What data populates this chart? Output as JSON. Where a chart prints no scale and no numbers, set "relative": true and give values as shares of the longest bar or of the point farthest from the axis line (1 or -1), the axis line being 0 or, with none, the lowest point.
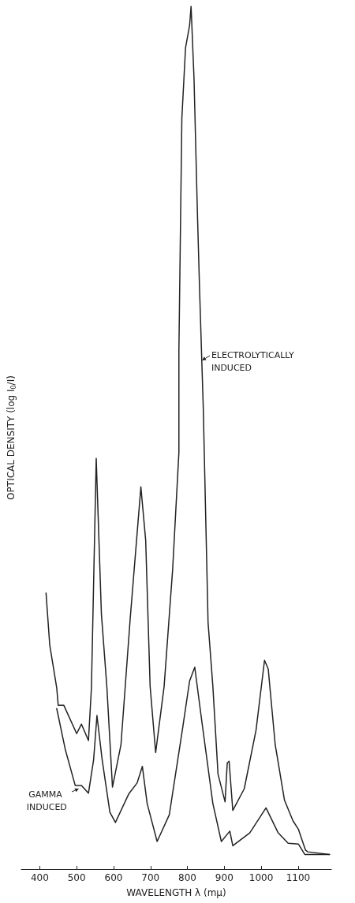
{
  "chart_data": {
    "type": "line",
    "relative": true,
    "xlabel": "WAVELENGTH λ (mμ)",
    "ylabel": "OPTICAL DENSITY (log I$_{0}$/I)",
    "xlim": [
      350,
      1190
    ],
    "xticks": [
      400,
      500,
      600,
      700,
      800,
      900,
      1000,
      1100
    ],
    "grid": false,
    "marker": "none",
    "line_style": "solid",
    "series": [
      {
        "color": "#222222",
        "x": [
          417,
          427,
          446,
          450,
          465,
          500,
          513,
          532,
          540,
          553,
          567,
          582,
          597,
          620,
          645,
          674,
          687,
          699,
          714,
          737,
          760,
          777,
          777,
          785,
          795,
          806,
          810,
          818,
          827,
          833,
          843,
          856,
          869,
          883,
          902,
          908,
          913,
          923,
          954,
          986,
          1009,
          1019,
          1038,
          1063,
          1086,
          1101,
          1120,
          1126,
          1185
        ],
        "values": [
          0.32,
          0.26,
          0.21,
          0.19,
          0.19,
          0.157,
          0.168,
          0.149,
          0.21,
          0.476,
          0.296,
          0.21,
          0.095,
          0.144,
          0.29,
          0.443,
          0.381,
          0.212,
          0.135,
          0.212,
          0.347,
          0.483,
          0.6,
          0.87,
          0.952,
          0.978,
          1,
          0.916,
          0.763,
          0.672,
          0.535,
          0.286,
          0.212,
          0.11,
          0.078,
          0.123,
          0.125,
          0.068,
          0.093,
          0.161,
          0.242,
          0.232,
          0.144,
          0.08,
          0.056,
          0.046,
          0.022,
          0.02,
          0.017
        ]
      },
      {
        "color": "#222222",
        "x": [
          446,
          469,
          496,
          513,
          532,
          546,
          555,
          569,
          590,
          605,
          641,
          664,
          678,
          691,
          718,
          751,
          787,
          806,
          820,
          837,
          869,
          892,
          915,
          923,
          969,
          1013,
          1046,
          1073,
          1101,
          1118,
          1185
        ],
        "values": [
          0.186,
          0.139,
          0.097,
          0.097,
          0.088,
          0.127,
          0.178,
          0.127,
          0.066,
          0.054,
          0.087,
          0.1,
          0.119,
          0.076,
          0.032,
          0.063,
          0.163,
          0.218,
          0.234,
          0.178,
          0.076,
          0.032,
          0.044,
          0.027,
          0.042,
          0.071,
          0.042,
          0.03,
          0.029,
          0.017,
          0.017
        ]
      }
    ],
    "annotations": [
      {
        "text": "ELECTROLYTICALLY INDUCED",
        "x": 835,
        "y": 0.59
      },
      {
        "text": "GAMMA INDUCED",
        "x": 513,
        "y": 0.097
      }
    ]
  }
}
